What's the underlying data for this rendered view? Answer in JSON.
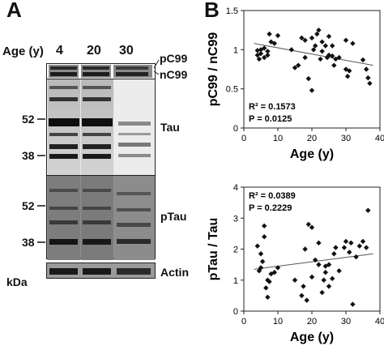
{
  "panel_a": {
    "letter": "A",
    "age_label": "Age (y)",
    "lanes": [
      "4",
      "20",
      "30"
    ],
    "right_labels": {
      "pc99": "pC99",
      "nc99": "nC99",
      "tau": "Tau",
      "ptau": "pTau",
      "actin": "Actin"
    },
    "kda_label": "kDa",
    "markers": {
      "tau_52": "52",
      "tau_38": "38",
      "ptau_52": "52",
      "ptau_38": "38"
    }
  },
  "panel_b_letter": "B",
  "chart_data": [
    {
      "type": "scatter",
      "xlabel": "Age (y)",
      "ylabel": "pC99 / nC99",
      "xlim": [
        0,
        40
      ],
      "ylim": [
        0,
        1.5
      ],
      "xticks": [
        "0",
        "10",
        "20",
        "30",
        "40"
      ],
      "yticks": [
        "0",
        "0.5",
        "1",
        "1.5"
      ],
      "annotations": {
        "r2": "R² = 0.1573",
        "p": "P = 0.0125"
      },
      "points": [
        [
          4,
          0.99
        ],
        [
          4,
          0.93
        ],
        [
          4.5,
          0.88
        ],
        [
          5,
          1.0
        ],
        [
          5,
          0.95
        ],
        [
          6,
          1.02
        ],
        [
          6,
          0.9
        ],
        [
          7,
          0.98
        ],
        [
          7,
          0.93
        ],
        [
          7.5,
          1.2
        ],
        [
          8,
          1.1
        ],
        [
          9,
          1.08
        ],
        [
          10,
          1.18
        ],
        [
          14,
          1.0
        ],
        [
          15,
          0.77
        ],
        [
          16,
          0.8
        ],
        [
          17,
          1.15
        ],
        [
          18,
          0.9
        ],
        [
          18,
          1.12
        ],
        [
          19,
          0.63
        ],
        [
          20,
          1.15
        ],
        [
          20,
          0.48
        ],
        [
          20.5,
          1.0
        ],
        [
          21,
          1.05
        ],
        [
          21.5,
          1.2
        ],
        [
          22,
          1.25
        ],
        [
          22.5,
          0.88
        ],
        [
          23,
          1.1
        ],
        [
          23,
          0.98
        ],
        [
          24,
          1.05
        ],
        [
          24.5,
          0.9
        ],
        [
          25,
          1.17
        ],
        [
          25,
          0.93
        ],
        [
          26,
          1.05
        ],
        [
          26,
          0.92
        ],
        [
          26.5,
          0.8
        ],
        [
          27,
          0.88
        ],
        [
          28,
          0.9
        ],
        [
          30,
          1.12
        ],
        [
          30,
          0.75
        ],
        [
          30.5,
          0.66
        ],
        [
          31,
          0.73
        ],
        [
          32,
          1.08
        ],
        [
          35,
          0.87
        ],
        [
          36,
          0.75
        ],
        [
          36.5,
          0.64
        ],
        [
          37,
          0.57
        ]
      ],
      "trendline": [
        [
          3,
          1.08
        ],
        [
          38,
          0.8
        ]
      ]
    },
    {
      "type": "scatter",
      "xlabel": "Age (y)",
      "ylabel": "pTau / Tau",
      "xlim": [
        0,
        40
      ],
      "ylim": [
        0,
        4
      ],
      "xticks": [
        "0",
        "10",
        "20",
        "30",
        "40"
      ],
      "yticks": [
        "0",
        "1",
        "2",
        "3",
        "4"
      ],
      "annotations": {
        "r2": "R² = 0.0389",
        "p": "P = 0.2229"
      },
      "points": [
        [
          4,
          2.1
        ],
        [
          4.5,
          1.3
        ],
        [
          5,
          1.85
        ],
        [
          5,
          1.4
        ],
        [
          5.5,
          1.6
        ],
        [
          6,
          2.75
        ],
        [
          6,
          2.4
        ],
        [
          6.5,
          0.75
        ],
        [
          7,
          1.0
        ],
        [
          7,
          0.45
        ],
        [
          7.5,
          0.95
        ],
        [
          8,
          1.2
        ],
        [
          9,
          1.25
        ],
        [
          10,
          1.4
        ],
        [
          15,
          1.0
        ],
        [
          17,
          0.5
        ],
        [
          17.5,
          0.8
        ],
        [
          18,
          2.0
        ],
        [
          18.5,
          0.35
        ],
        [
          19,
          2.8
        ],
        [
          20,
          1.1
        ],
        [
          20,
          2.7
        ],
        [
          21,
          1.65
        ],
        [
          22,
          2.2
        ],
        [
          22,
          1.5
        ],
        [
          23,
          0.6
        ],
        [
          23.5,
          1.0
        ],
        [
          24,
          1.45
        ],
        [
          24,
          1.25
        ],
        [
          25,
          0.8
        ],
        [
          25,
          1.5
        ],
        [
          26,
          1.05
        ],
        [
          26.5,
          1.85
        ],
        [
          27,
          2.05
        ],
        [
          28,
          1.3
        ],
        [
          29.5,
          2.05
        ],
        [
          30,
          2.25
        ],
        [
          31,
          1.9
        ],
        [
          31.5,
          2.2
        ],
        [
          32,
          0.22
        ],
        [
          33,
          1.75
        ],
        [
          34,
          2.1
        ],
        [
          35,
          2.25
        ],
        [
          36,
          2.05
        ],
        [
          36.5,
          3.25
        ]
      ],
      "trendline": [
        [
          3,
          1.35
        ],
        [
          38,
          1.85
        ]
      ]
    }
  ]
}
